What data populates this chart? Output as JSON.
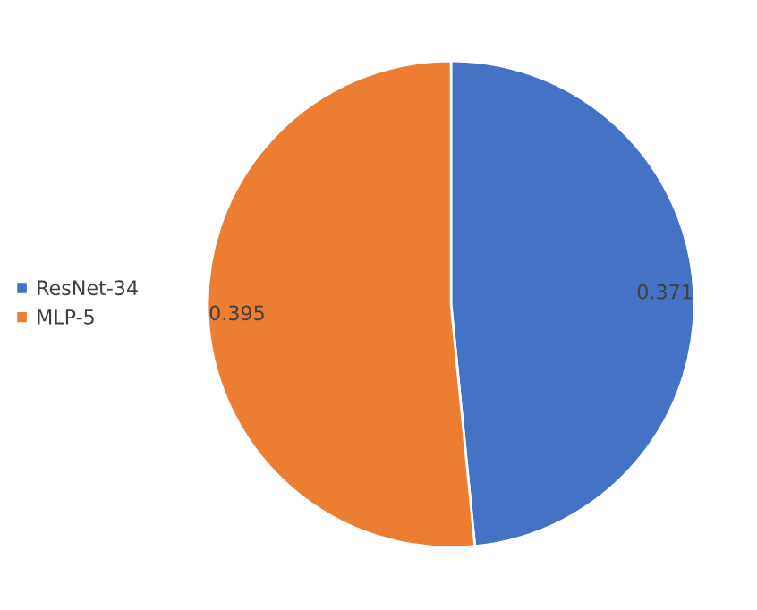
{
  "chart_data": {
    "type": "pie",
    "categories": [
      "ResNet-34",
      "MLP-5"
    ],
    "values": [
      0.371,
      0.395
    ],
    "colors": [
      "#4472c4",
      "#ed7d31"
    ],
    "data_labels": true,
    "legend": "left"
  }
}
